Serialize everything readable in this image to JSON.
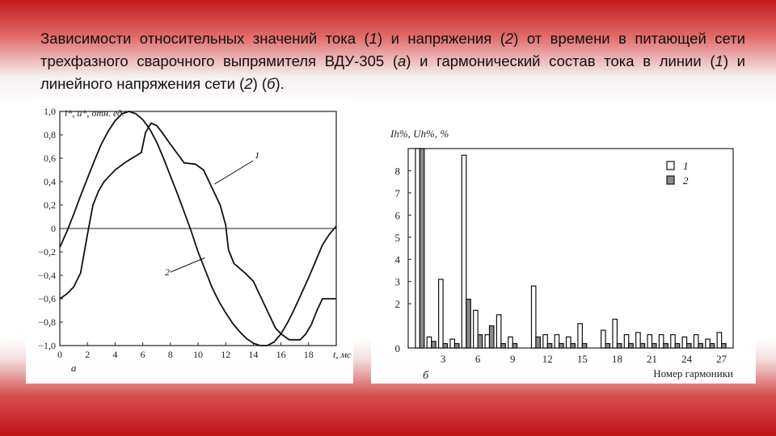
{
  "slide": {
    "caption_parts": [
      "Зависимости относительных значений тока (",
      "1",
      ") и напряжения (",
      "2",
      ") от времени в питающей сети трехфазного сварочного выпрямителя ВДУ-305 (",
      "а",
      ") и гармонический состав тока в линии (",
      "1",
      ") и линейного напряжения сети (",
      "2",
      ") (",
      "б",
      ")."
    ]
  },
  "chart_data": [
    {
      "type": "line",
      "panel_label": "а",
      "ylabel": "i*, u*, отн. ед.",
      "xlabel": "t, мс",
      "xlim": [
        0,
        20
      ],
      "ylim": [
        -1.0,
        1.0
      ],
      "xticks": [
        "0",
        "2",
        "4",
        "6",
        "8",
        "10",
        "12",
        "14",
        "16",
        "18"
      ],
      "yticks": [
        "1,0",
        "0,8",
        "0,6",
        "0,4",
        "0,2",
        "0",
        "−0,2",
        "−0,4",
        "−0,6",
        "−0,8",
        "−1,0"
      ],
      "grid": false,
      "series": [
        {
          "name": "1",
          "x": [
            0,
            0.5,
            1,
            1.5,
            2,
            2.4,
            2.8,
            3.2,
            4,
            4.8,
            5.5,
            5.9,
            6.2,
            6.6,
            7.0,
            7.4,
            8.0,
            9.0,
            9.8,
            10.4,
            11.0,
            11.6,
            12.0,
            12.2,
            12.6,
            13.4,
            14.0,
            14.4,
            15.0,
            15.6,
            16.0,
            16.6,
            17.4,
            17.8,
            18.2,
            18.6,
            19.0,
            19.5,
            20
          ],
          "y": [
            -0.6,
            -0.56,
            -0.5,
            -0.38,
            -0.05,
            0.2,
            0.32,
            0.4,
            0.5,
            0.57,
            0.62,
            0.65,
            0.82,
            0.9,
            0.88,
            0.82,
            0.72,
            0.56,
            0.55,
            0.5,
            0.35,
            0.2,
            0.03,
            -0.18,
            -0.3,
            -0.38,
            -0.45,
            -0.55,
            -0.7,
            -0.85,
            -0.9,
            -0.95,
            -0.95,
            -0.9,
            -0.82,
            -0.7,
            -0.6,
            -0.6,
            -0.6
          ]
        },
        {
          "name": "2",
          "x": [
            0,
            0.5,
            1,
            1.5,
            2,
            2.5,
            3,
            3.5,
            4,
            4.5,
            5,
            5.5,
            6,
            6.5,
            7,
            7.5,
            8,
            8.5,
            9,
            9.5,
            10,
            10.5,
            11,
            11.5,
            12,
            12.5,
            13,
            13.5,
            14,
            14.5,
            15,
            15.5,
            16,
            16.5,
            17,
            17.5,
            18,
            18.5,
            19,
            19.5,
            20
          ],
          "y": [
            -0.16,
            -0.03,
            0.12,
            0.28,
            0.43,
            0.58,
            0.72,
            0.83,
            0.92,
            0.98,
            1.0,
            0.98,
            0.93,
            0.85,
            0.74,
            0.6,
            0.45,
            0.3,
            0.14,
            -0.02,
            -0.2,
            -0.35,
            -0.5,
            -0.62,
            -0.72,
            -0.81,
            -0.88,
            -0.94,
            -0.98,
            -1.0,
            -1.0,
            -0.97,
            -0.9,
            -0.8,
            -0.68,
            -0.55,
            -0.42,
            -0.28,
            -0.14,
            -0.05,
            0.02
          ]
        }
      ]
    },
    {
      "type": "bar",
      "panel_label": "б",
      "ylabel": "Ih%, Uh%, %",
      "xlabel": "Номер гармоники",
      "categories": [
        1,
        2,
        3,
        4,
        5,
        6,
        7,
        8,
        9,
        10,
        11,
        12,
        13,
        14,
        15,
        16,
        17,
        18,
        19,
        20,
        21,
        22,
        23,
        24,
        25,
        26,
        27
      ],
      "xticks": [
        "3",
        "6",
        "9",
        "12",
        "15",
        "18",
        "21",
        "24",
        "27"
      ],
      "yticks": [
        "0",
        "2",
        "3",
        "4",
        "5",
        "6",
        "7",
        "8"
      ],
      "ylim": [
        0,
        9
      ],
      "xlim": [
        0,
        28
      ],
      "legend": "top-right",
      "legend_entries": [
        "1",
        "2"
      ],
      "series": [
        {
          "name": "1",
          "color": "#ffffff",
          "values": [
            9.0,
            0.5,
            3.1,
            0.4,
            8.7,
            1.7,
            0.6,
            1.5,
            0.5,
            0,
            2.8,
            0.6,
            0.6,
            0.5,
            1.1,
            0,
            0.8,
            1.3,
            0.6,
            0.7,
            0.6,
            0.6,
            0.6,
            0.5,
            0.6,
            0.4,
            0.7
          ]
        },
        {
          "name": "2",
          "color": "#8a8a8a",
          "values": [
            9.0,
            0.3,
            0.2,
            0.2,
            2.2,
            0.6,
            1.0,
            0.2,
            0.2,
            0,
            0.5,
            0.2,
            0.2,
            0.2,
            0.2,
            0,
            0.2,
            0.2,
            0.2,
            0.2,
            0.2,
            0.2,
            0.2,
            0.2,
            0.2,
            0.2,
            0.2
          ]
        }
      ]
    }
  ]
}
